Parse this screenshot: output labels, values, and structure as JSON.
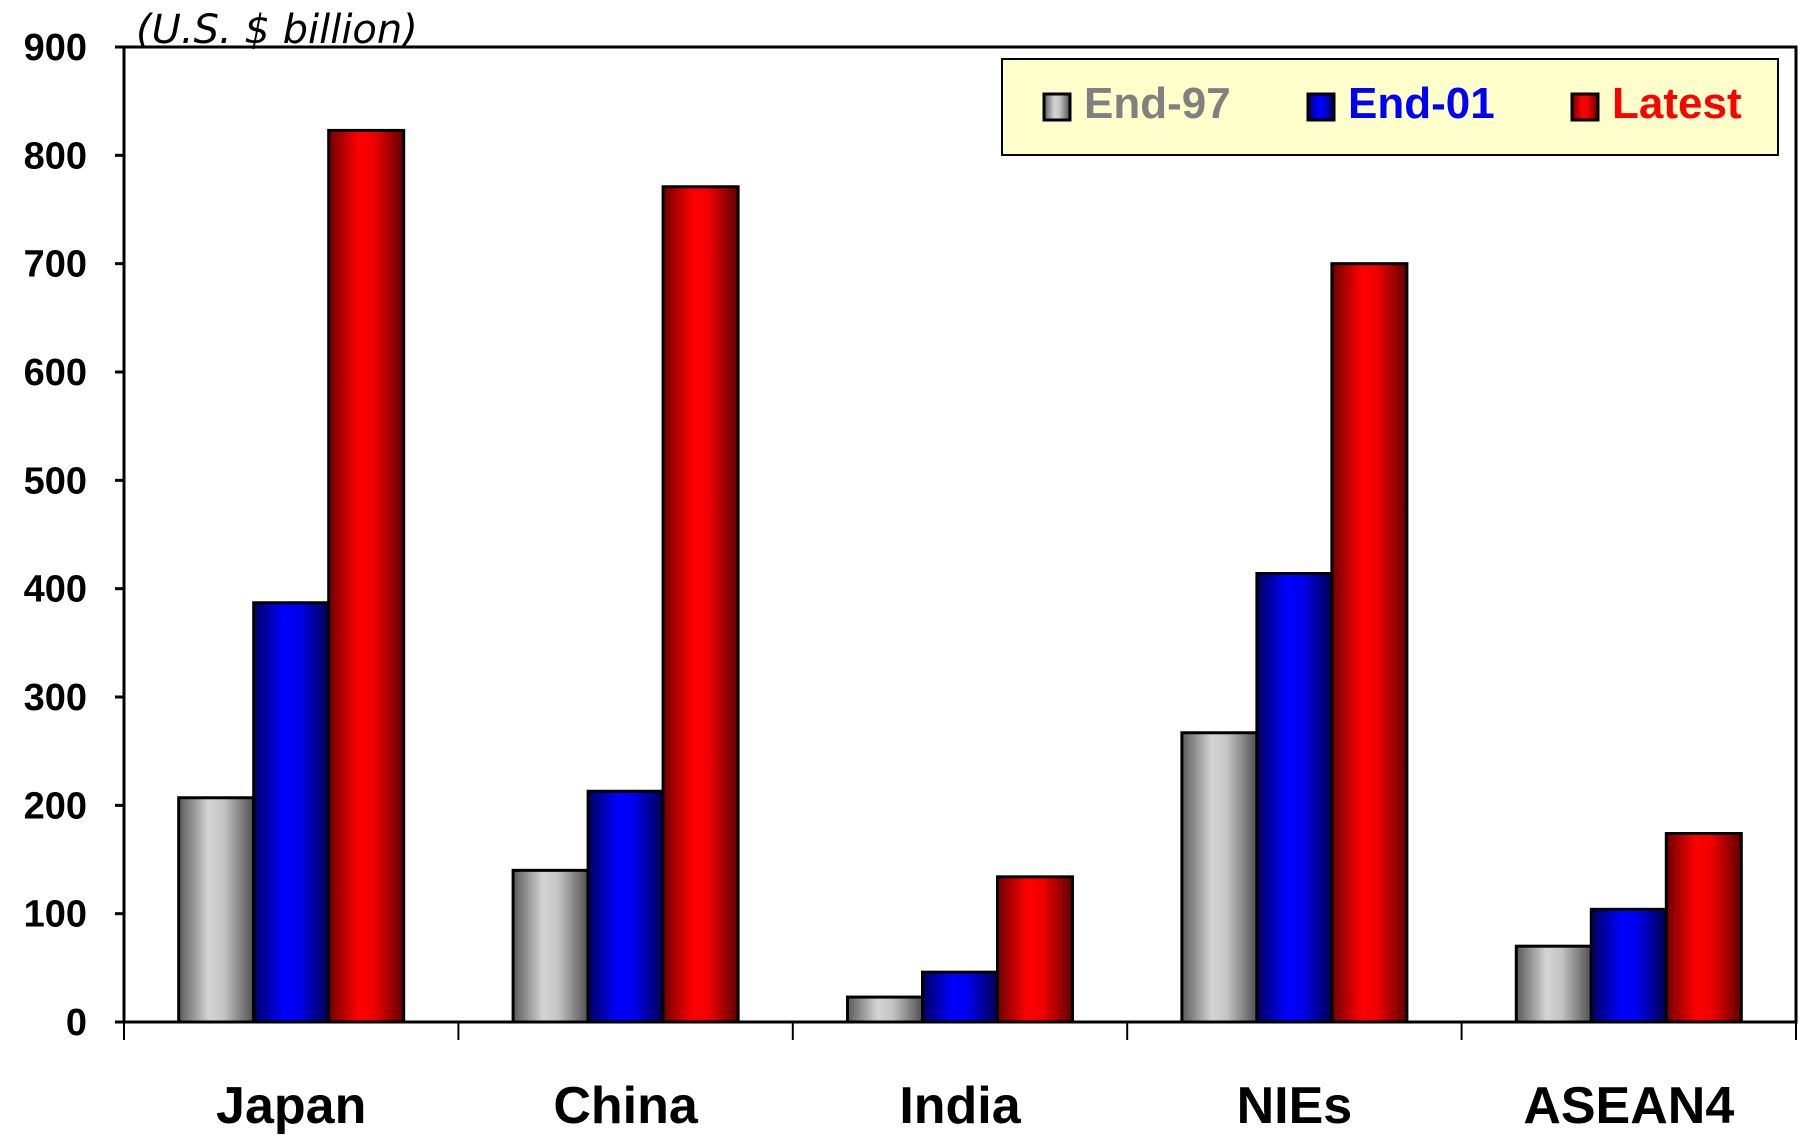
{
  "chart_data": {
    "type": "bar",
    "unit_label": "(U.S. $ billion)",
    "categories": [
      "Japan",
      "China",
      "India",
      "NIEs",
      "ASEAN4"
    ],
    "series": [
      {
        "name": "End-97",
        "values": [
          207,
          140,
          23,
          267,
          70
        ],
        "color": "#9a9a9a",
        "text_color": "#808080"
      },
      {
        "name": "End-01",
        "values": [
          387,
          213,
          46,
          414,
          104
        ],
        "color": "#0000ff",
        "text_color": "#0000ff"
      },
      {
        "name": "Latest",
        "values": [
          823,
          771,
          134,
          700,
          174
        ],
        "color": "#ff0000",
        "text_color": "#ff0000"
      }
    ],
    "ylim": [
      0,
      900
    ],
    "yticks": [
      0,
      100,
      200,
      300,
      400,
      500,
      600,
      700,
      800,
      900
    ],
    "grid": false,
    "legend_position": "top-right",
    "legend_background": "#ffffcc"
  }
}
